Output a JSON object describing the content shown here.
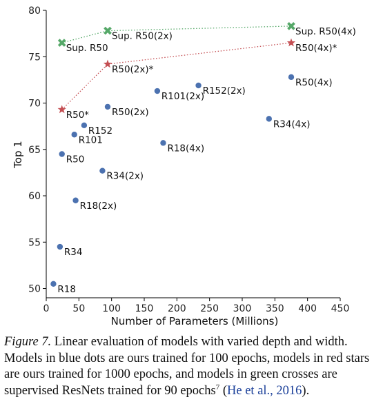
{
  "chart_data": {
    "type": "scatter",
    "xlabel": "Number of Parameters (Millions)",
    "ylabel": "Top 1",
    "xlim": [
      0,
      450
    ],
    "ylim": [
      49,
      80
    ],
    "xticks": [
      0,
      50,
      100,
      150,
      200,
      250,
      300,
      350,
      400,
      450
    ],
    "yticks": [
      50,
      55,
      60,
      65,
      70,
      75,
      80
    ],
    "grid": false,
    "colors": {
      "blue": "#4c72b0",
      "red": "#c44e52",
      "green": "#55a868"
    },
    "series": [
      {
        "marker": "circle",
        "color": "#4c72b0",
        "points": [
          {
            "label": "R18",
            "x": 11,
            "y": 50.5
          },
          {
            "label": "R34",
            "x": 21,
            "y": 54.5
          },
          {
            "label": "R50",
            "x": 24,
            "y": 64.5
          },
          {
            "label": "R101",
            "x": 43,
            "y": 66.6
          },
          {
            "label": "R152",
            "x": 58,
            "y": 67.6
          },
          {
            "label": "R18(2x)",
            "x": 45,
            "y": 59.5
          },
          {
            "label": "R34(2x)",
            "x": 86,
            "y": 62.7
          },
          {
            "label": "R50(2x)",
            "x": 94,
            "y": 69.6
          },
          {
            "label": "R101(2x)",
            "x": 170,
            "y": 71.3
          },
          {
            "label": "R152(2x)",
            "x": 233,
            "y": 71.9
          },
          {
            "label": "R18(4x)",
            "x": 179,
            "y": 65.7
          },
          {
            "label": "R34(4x)",
            "x": 341,
            "y": 68.3
          },
          {
            "label": "R50(4x)",
            "x": 375,
            "y": 72.8
          }
        ]
      },
      {
        "marker": "star",
        "color": "#c44e52",
        "connected": true,
        "points": [
          {
            "label": "R50*",
            "x": 24,
            "y": 69.3
          },
          {
            "label": "R50(2x)*",
            "x": 94,
            "y": 74.2
          },
          {
            "label": "R50(4x)*",
            "x": 375,
            "y": 76.5
          }
        ]
      },
      {
        "marker": "cross",
        "color": "#55a868",
        "connected": true,
        "points": [
          {
            "label": "Sup. R50",
            "x": 24,
            "y": 76.5
          },
          {
            "label": "Sup. R50(2x)",
            "x": 94,
            "y": 77.8
          },
          {
            "label": "Sup. R50(4x)",
            "x": 375,
            "y": 78.3
          }
        ]
      }
    ]
  },
  "caption": {
    "fig_label": "Figure 7.",
    "text": " Linear evaluation of models with varied depth and width. Models in blue dots are ours trained for 100 epochs, models in red stars are ours trained for 1000 epochs, and models in green crosses are supervised ResNets trained for 90 epochs",
    "footnote": "7",
    "cite_open": " (",
    "cite": "He et al., 2016",
    "cite_close": ")."
  }
}
